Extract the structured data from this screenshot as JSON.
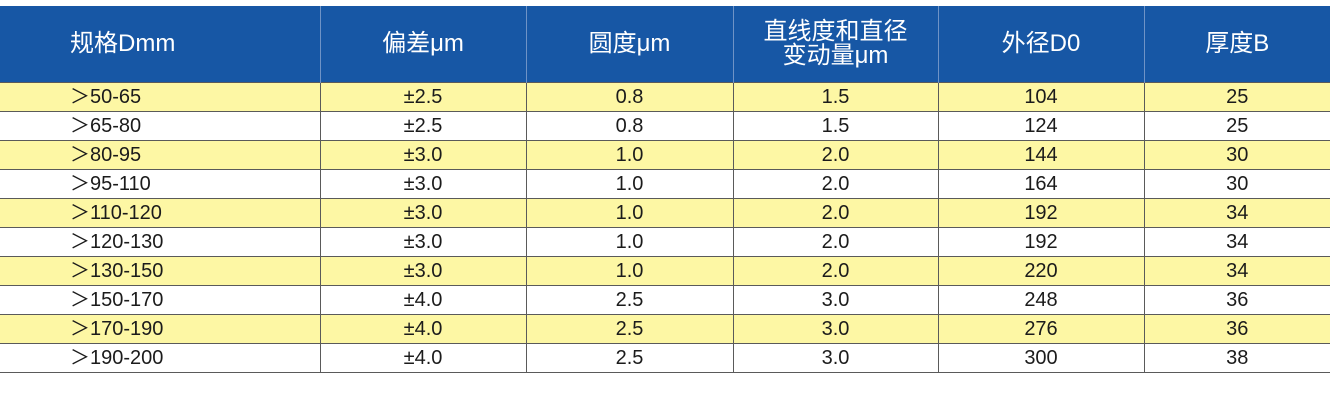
{
  "table": {
    "headers": [
      {
        "lines": [
          "规格Dmm"
        ]
      },
      {
        "lines": [
          "偏差μm"
        ]
      },
      {
        "lines": [
          "圆度μm"
        ]
      },
      {
        "lines": [
          "直线度和直径",
          "变动量μm"
        ]
      },
      {
        "lines": [
          "外径D0"
        ]
      },
      {
        "lines": [
          "厚度B"
        ]
      }
    ],
    "rows": [
      [
        "＞50-65",
        "±2.5",
        "0.8",
        "1.5",
        "104",
        "25"
      ],
      [
        "＞65-80",
        "±2.5",
        "0.8",
        "1.5",
        "124",
        "25"
      ],
      [
        "＞80-95",
        "±3.0",
        "1.0",
        "2.0",
        "144",
        "30"
      ],
      [
        "＞95-110",
        "±3.0",
        "1.0",
        "2.0",
        "164",
        "30"
      ],
      [
        "＞110-120",
        "±3.0",
        "1.0",
        "2.0",
        "192",
        "34"
      ],
      [
        "＞120-130",
        "±3.0",
        "1.0",
        "2.0",
        "192",
        "34"
      ],
      [
        "＞130-150",
        "±3.0",
        "1.0",
        "2.0",
        "220",
        "34"
      ],
      [
        "＞150-170",
        "±4.0",
        "2.5",
        "3.0",
        "248",
        "36"
      ],
      [
        "＞170-190",
        "±4.0",
        "2.5",
        "3.0",
        "276",
        "36"
      ],
      [
        "＞190-200",
        "±4.0",
        "2.5",
        "3.0",
        "300",
        "38"
      ]
    ],
    "row_fill": [
      "yellow",
      "white",
      "yellow",
      "white",
      "yellow",
      "white",
      "yellow",
      "white",
      "yellow",
      "white"
    ]
  },
  "colors": {
    "header_bg": "#1757a5",
    "header_text": "#ffffff",
    "row_yellow": "#fdf7a4",
    "row_white": "#ffffff"
  }
}
